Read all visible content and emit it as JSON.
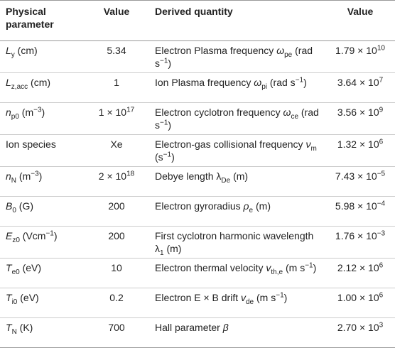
{
  "table": {
    "header": [
      "Physical parameter",
      "Value",
      "Derived quantity",
      "Value"
    ],
    "rows": [
      [
        [
          [
            "i",
            "L"
          ],
          [
            "sub",
            "y"
          ],
          " (cm)"
        ],
        [
          "5.34"
        ],
        [
          "Electron Plasma frequency ",
          [
            "i",
            "ω"
          ],
          [
            "sub",
            "pe"
          ],
          " (rad s",
          [
            "sup",
            "−1"
          ],
          ")"
        ],
        [
          "1.79 × 10",
          [
            "sup",
            "10"
          ]
        ]
      ],
      [
        [
          [
            "i",
            "L"
          ],
          [
            "sub",
            "z,acc"
          ],
          " (cm)"
        ],
        [
          "1"
        ],
        [
          "Ion Plasma frequency ",
          [
            "i",
            "ω"
          ],
          [
            "sub",
            "pi"
          ],
          " (rad s",
          [
            "sup",
            "−1"
          ],
          ")"
        ],
        [
          "3.64 × 10",
          [
            "sup",
            "7"
          ]
        ]
      ],
      [
        [
          [
            "i",
            "n"
          ],
          [
            "sub",
            "p0"
          ],
          " (m",
          [
            "sup",
            "−3"
          ],
          ")"
        ],
        [
          "1 × 10",
          [
            "sup",
            "17"
          ]
        ],
        [
          "Electron cyclotron frequency ",
          [
            "i",
            "ω"
          ],
          [
            "sub",
            "ce"
          ],
          " (rad s",
          [
            "sup",
            "−1"
          ],
          ")"
        ],
        [
          "3.56 × 10",
          [
            "sup",
            "9"
          ]
        ]
      ],
      [
        [
          "Ion species"
        ],
        [
          "Xe"
        ],
        [
          "Electron-gas collisional frequency ",
          [
            "i",
            "ν"
          ],
          [
            "sub",
            "m"
          ],
          " (s",
          [
            "sup",
            "−1"
          ],
          ")"
        ],
        [
          "1.32 × 10",
          [
            "sup",
            "6"
          ]
        ]
      ],
      [
        [
          [
            "i",
            "n"
          ],
          [
            "sub",
            "N"
          ],
          " (m",
          [
            "sup",
            "−3"
          ],
          ")"
        ],
        [
          "2 × 10",
          [
            "sup",
            "18"
          ]
        ],
        [
          "Debye length λ",
          [
            "sub",
            "De"
          ],
          " (m)"
        ],
        [
          "7.43 × 10",
          [
            "sup",
            "−5"
          ]
        ]
      ],
      [
        [
          [
            "i",
            "B"
          ],
          [
            "sub",
            "0"
          ],
          " (G)"
        ],
        [
          "200"
        ],
        [
          "Electron gyroradius ",
          [
            "i",
            "ρ"
          ],
          [
            "sub",
            "e"
          ],
          " (m)"
        ],
        [
          "5.98 × 10",
          [
            "sup",
            "−4"
          ]
        ]
      ],
      [
        [
          [
            "i",
            "E"
          ],
          [
            "sub",
            "z0"
          ],
          " (Vcm",
          [
            "sup",
            "−1"
          ],
          ")"
        ],
        [
          "200"
        ],
        [
          "First cyclotron harmonic wavelength λ",
          [
            "sub",
            "1"
          ],
          " (m)"
        ],
        [
          "1.76 × 10",
          [
            "sup",
            "−3"
          ]
        ]
      ],
      [
        [
          [
            "i",
            "T"
          ],
          [
            "sub",
            "e0"
          ],
          " (eV)"
        ],
        [
          "10"
        ],
        [
          "Electron thermal velocity ",
          [
            "i",
            "v"
          ],
          [
            "sub",
            "th,e"
          ],
          " (m s",
          [
            "sup",
            "−1"
          ],
          ")"
        ],
        [
          "2.12 × 10",
          [
            "sup",
            "6"
          ]
        ]
      ],
      [
        [
          [
            "i",
            "T"
          ],
          [
            "sub",
            "i0"
          ],
          " (eV)"
        ],
        [
          "0.2"
        ],
        [
          "Electron E × B drift ",
          [
            "i",
            "v"
          ],
          [
            "sub",
            "de"
          ],
          " (m s",
          [
            "sup",
            "−1"
          ],
          ")"
        ],
        [
          "1.00 × 10",
          [
            "sup",
            "6"
          ]
        ]
      ],
      [
        [
          [
            "i",
            "T"
          ],
          [
            "sub",
            "N"
          ],
          " (K)"
        ],
        [
          "700"
        ],
        [
          "Hall parameter ",
          [
            "i",
            "β"
          ]
        ],
        [
          "2.70 × 10",
          [
            "sup",
            "3"
          ]
        ]
      ]
    ]
  }
}
